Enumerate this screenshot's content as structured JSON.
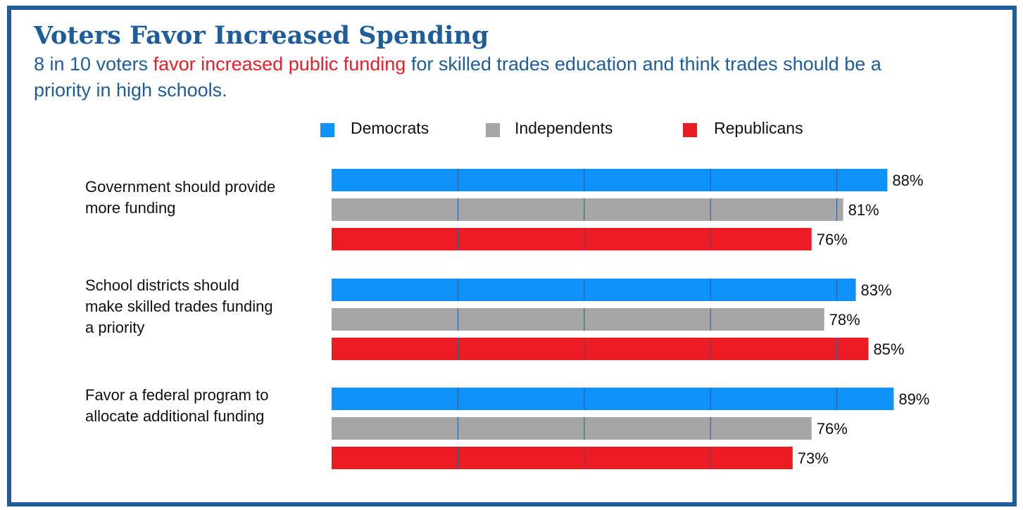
{
  "header": {
    "title": "Voters Favor Increased Spending",
    "subtitle_before": "8 in 10 voters ",
    "subtitle_highlight": "favor increased public funding",
    "subtitle_after": " for skilled trades education and think trades should be a priority in high schools."
  },
  "colors": {
    "frame": "#1f5d9a",
    "title": "#1f5d9a",
    "highlight": "#e8202a",
    "democrats": "#0f93fb",
    "independents": "#a6a6a6",
    "republicans": "#ec1c24",
    "gridline": "#1f5d9a"
  },
  "chart_data": {
    "type": "bar",
    "orientation": "horizontal",
    "categories": [
      [
        "Government should provide",
        "more funding"
      ],
      [
        "School districts should",
        "make skilled trades funding",
        "a priority"
      ],
      [
        "Favor a federal program to",
        "allocate additional funding"
      ]
    ],
    "series": [
      {
        "name": "Democrats",
        "color": "#0f93fb",
        "values": [
          88,
          83,
          89
        ],
        "labels": [
          "88%",
          "83%",
          "89%"
        ]
      },
      {
        "name": "Independents",
        "color": "#a6a6a6",
        "values": [
          81,
          78,
          76
        ],
        "labels": [
          "81%",
          "78%",
          "76%"
        ]
      },
      {
        "name": "Republicans",
        "color": "#ec1c24",
        "values": [
          76,
          85,
          73
        ],
        "labels": [
          "76%",
          "85%",
          "73%"
        ]
      }
    ],
    "unit": "%",
    "xlim": [
      0,
      100
    ],
    "gridlines": [
      20,
      40,
      60,
      80
    ],
    "legend_position": "top"
  }
}
